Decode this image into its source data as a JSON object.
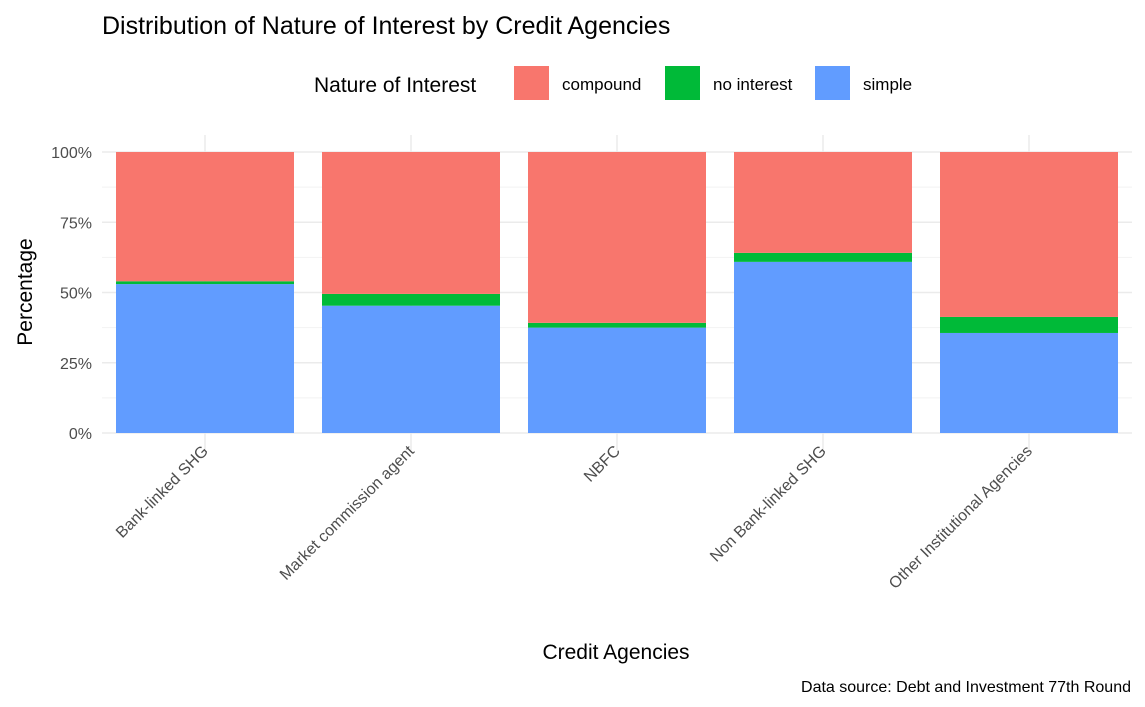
{
  "chart_data": {
    "type": "bar",
    "stacked": true,
    "title": "Distribution of Nature of Interest by Credit Agencies",
    "xlabel": "Credit Agencies",
    "ylabel": "Percentage",
    "caption": "Data source: Debt and Investment 77th Round",
    "legend_title": "Nature of Interest",
    "legend_position": "top",
    "ylim": [
      0,
      100
    ],
    "yticks": [
      "0%",
      "25%",
      "50%",
      "75%",
      "100%"
    ],
    "categories": [
      "Bank-linked SHG",
      "Market commission agent",
      "NBFC",
      "Non Bank-linked SHG",
      "Other Institutional Agencies"
    ],
    "series": [
      {
        "name": "compound",
        "color": "#F8766D",
        "values": [
          46.0,
          50.5,
          60.8,
          35.9,
          58.7
        ]
      },
      {
        "name": "no interest",
        "color": "#00BA38",
        "values": [
          1.0,
          4.2,
          1.7,
          3.2,
          5.7
        ]
      },
      {
        "name": "simple",
        "color": "#619CFF",
        "values": [
          53.0,
          45.3,
          37.5,
          60.9,
          35.6
        ]
      }
    ]
  }
}
